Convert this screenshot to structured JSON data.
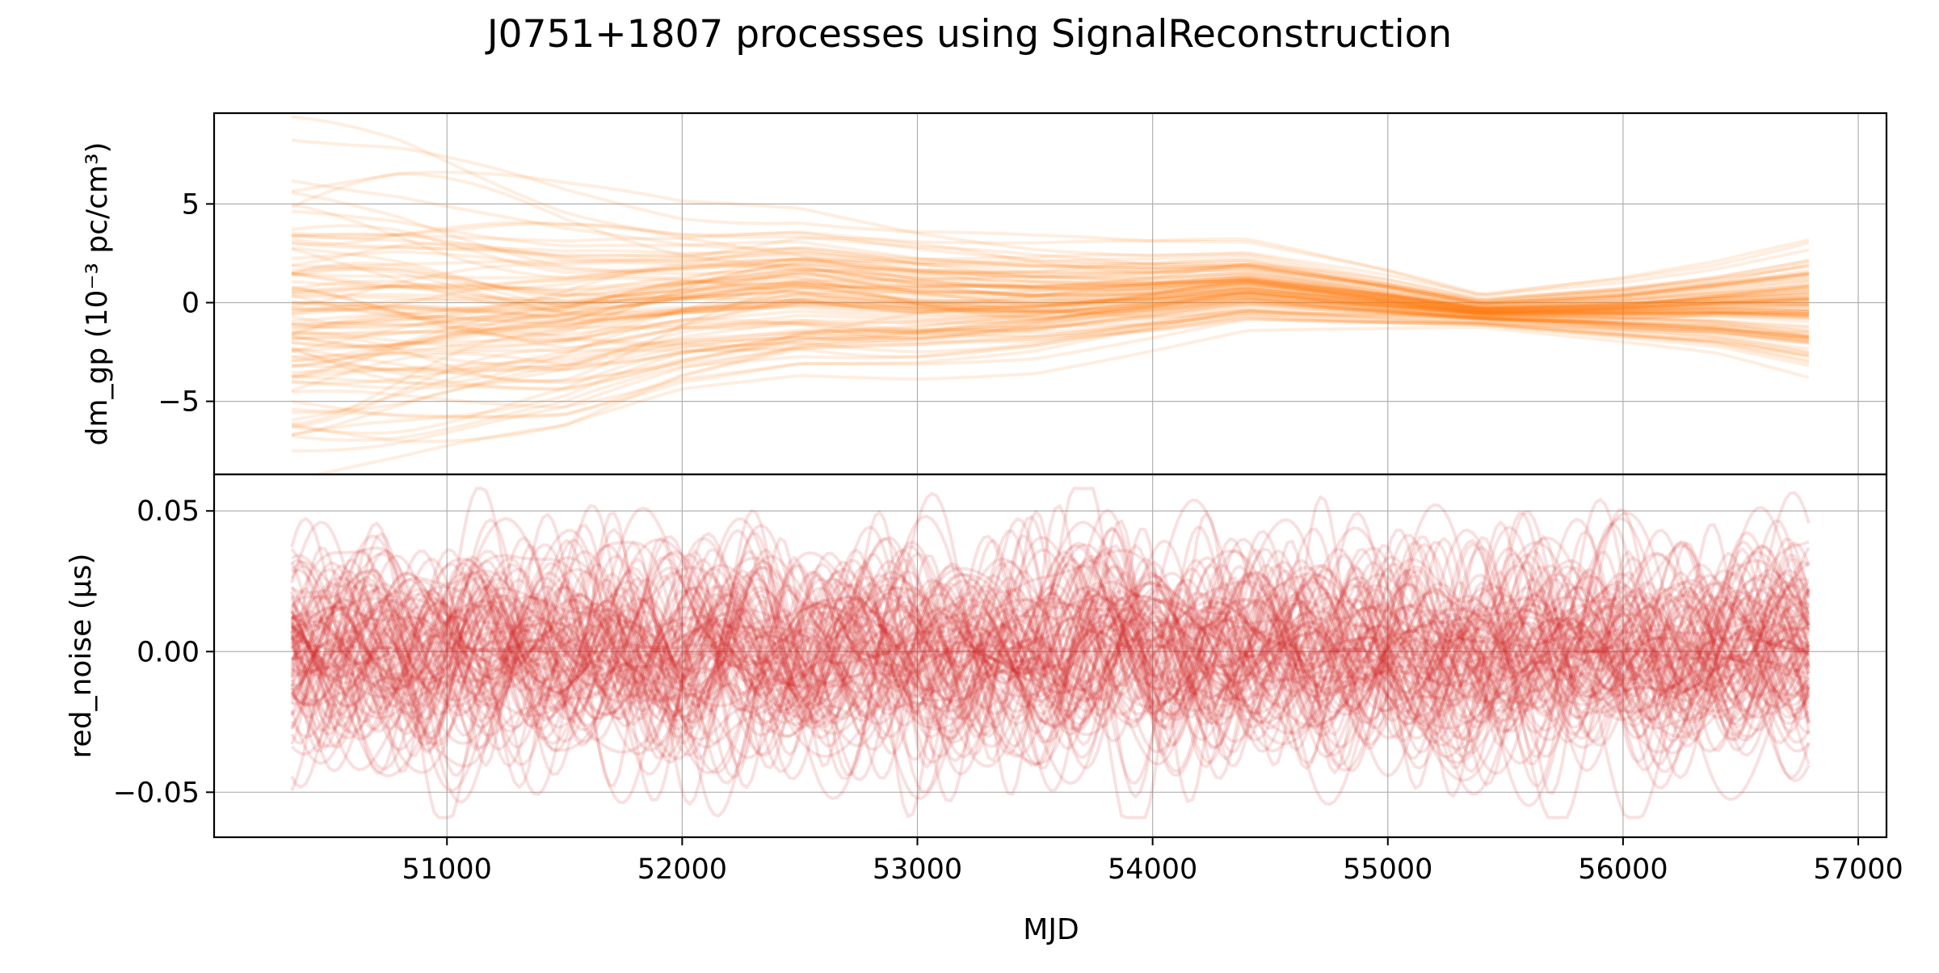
{
  "title": "J0751+1807 processes using SignalReconstruction",
  "xlabel": "MJD",
  "chart_data": [
    {
      "type": "line",
      "panel": "top",
      "ylabel": "dm_gp (10⁻³ pc/cm³)",
      "x_range": [
        50340,
        56790
      ],
      "xlim": [
        50010,
        57120
      ],
      "ylim": [
        -8.7,
        9.6
      ],
      "yticks": [
        5,
        0,
        -5
      ],
      "ytick_labels": [
        "5",
        "0",
        "−5"
      ],
      "grid": true,
      "color": "#ff7f0e",
      "line_opacity": 0.13,
      "realization_count_approx": 100,
      "envelope": {
        "x": [
          50340,
          50800,
          51500,
          52000,
          52500,
          53000,
          53500,
          54000,
          54400,
          55000,
          55400,
          56000,
          56400,
          56790
        ],
        "mean": [
          0.0,
          0.0,
          -0.3,
          0.3,
          0.8,
          0.4,
          0.3,
          0.6,
          1.0,
          0.2,
          -0.4,
          -0.3,
          -0.1,
          0.0
        ],
        "std": [
          3.4,
          3.2,
          2.6,
          2.0,
          1.8,
          1.6,
          1.4,
          1.1,
          0.9,
          0.6,
          0.35,
          0.7,
          1.0,
          1.5
        ]
      }
    },
    {
      "type": "line",
      "panel": "bottom",
      "ylabel": "red_noise (μs)",
      "x_range": [
        50340,
        56790
      ],
      "xlim": [
        50010,
        57120
      ],
      "ylim": [
        -0.066,
        0.063
      ],
      "yticks": [
        0.05,
        0.0,
        -0.05
      ],
      "ytick_labels": [
        "0.05",
        "0.00",
        "−0.05"
      ],
      "grid": true,
      "color": "#d62728",
      "line_opacity": 0.14,
      "realization_count_approx": 100,
      "envelope": {
        "mean": 0.0,
        "std": 0.018,
        "min": -0.059,
        "max": 0.058
      }
    }
  ],
  "xticks": [
    51000,
    52000,
    53000,
    54000,
    55000,
    56000,
    57000
  ],
  "xtick_labels": [
    "51000",
    "52000",
    "53000",
    "54000",
    "55000",
    "56000",
    "57000"
  ]
}
